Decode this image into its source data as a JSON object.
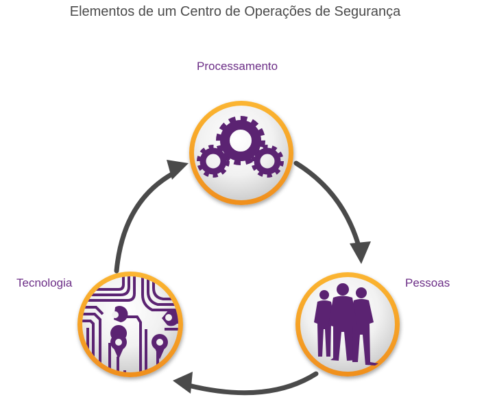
{
  "title": "Elementos de um Centro de Operações de Segurança",
  "nodes": [
    {
      "label": "Processamento",
      "icon": "gears-icon"
    },
    {
      "label": "Pessoas",
      "icon": "people-silhouette-icon"
    },
    {
      "label": "Tecnologia",
      "icon": "circuit-board-icon"
    }
  ],
  "colors": {
    "ring": "#f5a623",
    "icon": "#5b2372",
    "label": "#6b2d86",
    "arrow": "#4a4a4a",
    "title": "#4a4a4a"
  }
}
